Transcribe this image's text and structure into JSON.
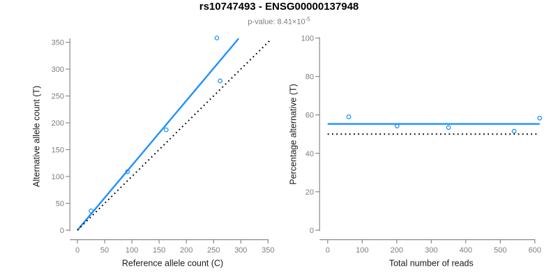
{
  "chart_data": {
    "title": "rs10747493 - ENSG00000137948",
    "subtitle_prefix": "p-value: 8.41×10",
    "subtitle_exponent": "-5",
    "colors": {
      "accent_blue": "#1E90FF",
      "axis_gray": "#898989",
      "tick_label_gray": "#7D7D7D",
      "axis_label_black": "#1A1A1A",
      "identity_line_black": "#000000"
    },
    "plots": [
      {
        "id": "allele-count-scatter",
        "type": "scatter",
        "xlabel": "Reference allele count (C)",
        "ylabel": "Alternative allele count (T)",
        "xlim": [
          0,
          350
        ],
        "ylim": [
          0,
          350
        ],
        "xticks": [
          0,
          50,
          100,
          150,
          200,
          250,
          300,
          350
        ],
        "yticks": [
          0,
          50,
          100,
          150,
          200,
          250,
          300,
          350
        ],
        "points": [
          [
            25,
            36
          ],
          [
            92,
            109
          ],
          [
            163,
            187
          ],
          [
            262,
            278
          ],
          [
            256,
            358
          ]
        ],
        "lines": [
          {
            "name": "fitted-line",
            "style": "solid",
            "color": "#1E90FF",
            "from": [
              0,
              0
            ],
            "to": [
              296,
              357
            ]
          },
          {
            "name": "identity-line",
            "style": "dotted",
            "color": "#000000",
            "from": [
              0,
              0
            ],
            "to": [
              354,
              354
            ]
          }
        ]
      },
      {
        "id": "percentage-alternative-scatter",
        "type": "scatter",
        "xlabel": "Total number of reads",
        "ylabel": "Percentage alternative (T)",
        "xlim": [
          0,
          600
        ],
        "ylim": [
          0,
          100
        ],
        "xticks": [
          0,
          100,
          200,
          300,
          400,
          500,
          600
        ],
        "yticks": [
          0,
          20,
          40,
          60,
          80,
          100
        ],
        "points": [
          [
            61,
            59.0
          ],
          [
            201,
            54.2
          ],
          [
            350,
            53.4
          ],
          [
            540,
            51.5
          ],
          [
            614,
            58.3
          ]
        ],
        "lines": [
          {
            "name": "mean-percentage-line",
            "style": "solid",
            "color": "#1E90FF",
            "from": [
              0,
              55.3
            ],
            "to": [
              614,
              55.3
            ]
          },
          {
            "name": "fifty-percent-line",
            "style": "dotted",
            "color": "#000000",
            "from": [
              0,
              50
            ],
            "to": [
              608,
              50
            ]
          }
        ]
      }
    ]
  }
}
